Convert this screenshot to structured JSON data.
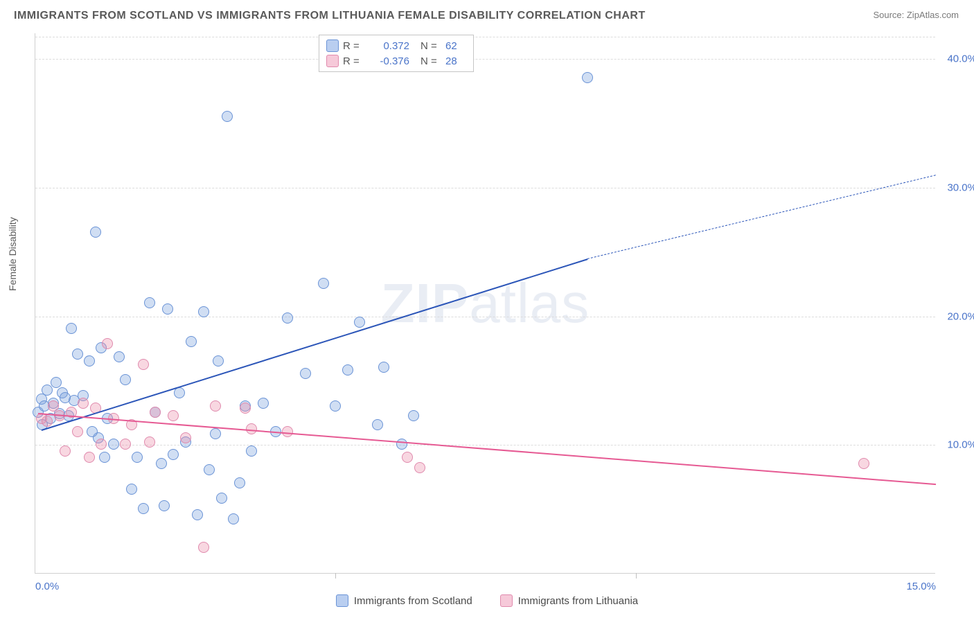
{
  "title": "IMMIGRANTS FROM SCOTLAND VS IMMIGRANTS FROM LITHUANIA FEMALE DISABILITY CORRELATION CHART",
  "source": "Source: ZipAtlas.com",
  "ylabel": "Female Disability",
  "watermark_bold": "ZIP",
  "watermark_light": "atlas",
  "chart": {
    "type": "scatter",
    "xlim": [
      0,
      15
    ],
    "ylim": [
      0,
      42
    ],
    "yticks": [
      10,
      20,
      30,
      40
    ],
    "ytick_labels": [
      "10.0%",
      "20.0%",
      "30.0%",
      "40.0%"
    ],
    "xticks": [
      0,
      5,
      10,
      15
    ],
    "xtick_corner_labels": [
      "0.0%",
      "15.0%"
    ],
    "background_color": "#ffffff",
    "grid_color": "#dcdcdc",
    "point_radius": 8,
    "point_border_width": 1.2,
    "series": [
      {
        "name": "Immigrants from Scotland",
        "color_fill": "rgba(120,160,220,0.35)",
        "color_stroke": "#6a93d6",
        "swatch_fill": "#b9cef0",
        "swatch_border": "#6a93d6",
        "R": "0.372",
        "N": "62",
        "trend": {
          "x1": 0.1,
          "y1": 11.2,
          "x2": 9.2,
          "y2": 24.5,
          "x2_ext": 15,
          "y2_ext": 31.0,
          "color": "#2b55b8",
          "width": 2.2
        },
        "points": [
          [
            0.05,
            12.5
          ],
          [
            0.1,
            13.5
          ],
          [
            0.15,
            13.0
          ],
          [
            0.2,
            14.2
          ],
          [
            0.25,
            12.0
          ],
          [
            0.3,
            13.2
          ],
          [
            0.35,
            14.8
          ],
          [
            0.4,
            12.4
          ],
          [
            0.45,
            14.0
          ],
          [
            0.5,
            13.6
          ],
          [
            0.55,
            12.2
          ],
          [
            0.6,
            19.0
          ],
          [
            0.65,
            13.4
          ],
          [
            0.7,
            17.0
          ],
          [
            0.8,
            13.8
          ],
          [
            0.9,
            16.5
          ],
          [
            1.0,
            26.5
          ],
          [
            1.05,
            10.5
          ],
          [
            1.1,
            17.5
          ],
          [
            1.2,
            12.0
          ],
          [
            1.3,
            10.0
          ],
          [
            1.4,
            16.8
          ],
          [
            1.5,
            15.0
          ],
          [
            1.7,
            9.0
          ],
          [
            1.8,
            5.0
          ],
          [
            1.9,
            21.0
          ],
          [
            2.0,
            12.5
          ],
          [
            2.1,
            8.5
          ],
          [
            2.2,
            20.5
          ],
          [
            2.3,
            9.2
          ],
          [
            2.4,
            14.0
          ],
          [
            2.5,
            10.2
          ],
          [
            2.6,
            18.0
          ],
          [
            2.7,
            4.5
          ],
          [
            2.8,
            20.3
          ],
          [
            2.9,
            8.0
          ],
          [
            3.0,
            10.8
          ],
          [
            3.1,
            5.8
          ],
          [
            3.2,
            35.5
          ],
          [
            3.3,
            4.2
          ],
          [
            3.4,
            7.0
          ],
          [
            3.5,
            13.0
          ],
          [
            3.6,
            9.5
          ],
          [
            3.8,
            13.2
          ],
          [
            4.0,
            11.0
          ],
          [
            4.2,
            19.8
          ],
          [
            4.5,
            15.5
          ],
          [
            4.8,
            22.5
          ],
          [
            5.0,
            13.0
          ],
          [
            5.2,
            15.8
          ],
          [
            5.4,
            19.5
          ],
          [
            5.7,
            11.5
          ],
          [
            5.8,
            16.0
          ],
          [
            6.1,
            10.0
          ],
          [
            6.3,
            12.2
          ],
          [
            9.2,
            38.5
          ],
          [
            1.6,
            6.5
          ],
          [
            0.95,
            11.0
          ],
          [
            2.15,
            5.2
          ],
          [
            3.05,
            16.5
          ],
          [
            1.15,
            9.0
          ],
          [
            0.12,
            11.5
          ]
        ]
      },
      {
        "name": "Immigrants from Lithuania",
        "color_fill": "rgba(235,140,170,0.35)",
        "color_stroke": "#e08aad",
        "swatch_fill": "#f6c9d9",
        "swatch_border": "#e08aad",
        "R": "-0.376",
        "N": "28",
        "trend": {
          "x1": 0.05,
          "y1": 12.5,
          "x2": 15,
          "y2": 7.0,
          "color": "#e65a93",
          "width": 2.2
        },
        "points": [
          [
            0.1,
            12.0
          ],
          [
            0.2,
            11.8
          ],
          [
            0.3,
            13.0
          ],
          [
            0.4,
            12.2
          ],
          [
            0.5,
            9.5
          ],
          [
            0.6,
            12.5
          ],
          [
            0.7,
            11.0
          ],
          [
            0.8,
            13.2
          ],
          [
            0.9,
            9.0
          ],
          [
            1.0,
            12.8
          ],
          [
            1.1,
            10.0
          ],
          [
            1.2,
            17.8
          ],
          [
            1.3,
            12.0
          ],
          [
            1.5,
            10.0
          ],
          [
            1.6,
            11.5
          ],
          [
            1.8,
            16.2
          ],
          [
            1.9,
            10.2
          ],
          [
            2.0,
            12.5
          ],
          [
            2.3,
            12.2
          ],
          [
            2.5,
            10.5
          ],
          [
            2.8,
            2.0
          ],
          [
            3.0,
            13.0
          ],
          [
            3.5,
            12.8
          ],
          [
            3.6,
            11.2
          ],
          [
            4.2,
            11.0
          ],
          [
            6.2,
            9.0
          ],
          [
            6.4,
            8.2
          ],
          [
            13.8,
            8.5
          ]
        ]
      }
    ]
  },
  "legend_bottom": [
    {
      "label": "Immigrants from Scotland",
      "swatch_fill": "#b9cef0",
      "swatch_border": "#6a93d6"
    },
    {
      "label": "Immigrants from Lithuania",
      "swatch_fill": "#f6c9d9",
      "swatch_border": "#e08aad"
    }
  ]
}
